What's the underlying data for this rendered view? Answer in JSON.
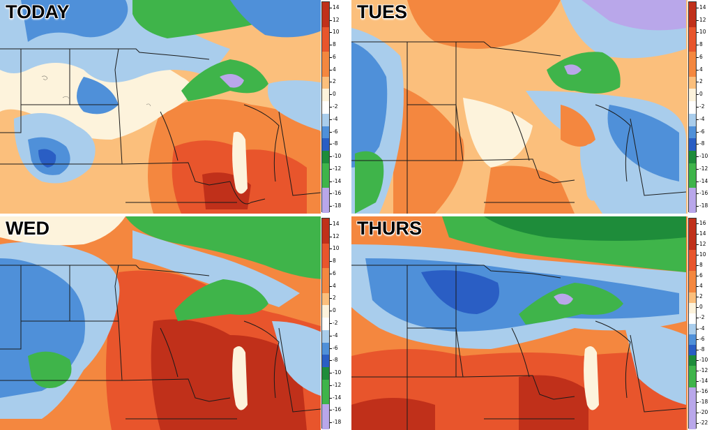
{
  "panels": [
    {
      "id": "tl",
      "title": "TODAY",
      "colorbar_labels": [
        "14",
        "12",
        "10",
        "8",
        "6",
        "4",
        "2",
        "0",
        "-2",
        "-4",
        "-6",
        "-8",
        "-10",
        "-12",
        "-14",
        "-16",
        "-18"
      ]
    },
    {
      "id": "tr",
      "title": "TUES",
      "colorbar_labels": [
        "14",
        "12",
        "10",
        "8",
        "6",
        "4",
        "2",
        "0",
        "-2",
        "-4",
        "-6",
        "-8",
        "-10",
        "-12",
        "-14",
        "-16",
        "-18"
      ]
    },
    {
      "id": "bl",
      "title": "WED",
      "colorbar_labels": [
        "14",
        "12",
        "10",
        "8",
        "6",
        "4",
        "2",
        "0",
        "-2",
        "-4",
        "-6",
        "-8",
        "-10",
        "-12",
        "-14",
        "-16",
        "-18"
      ]
    },
    {
      "id": "br",
      "title": "THURS",
      "colorbar_labels": [
        "16",
        "14",
        "12",
        "10",
        "8",
        "6",
        "4",
        "2",
        "0",
        "-2",
        "-4",
        "-6",
        "-8",
        "-10",
        "-12",
        "-14",
        "-16",
        "-18",
        "-20",
        "-22"
      ]
    }
  ],
  "colors": {
    "warm_dark": "#c0301a",
    "warm": "#e8552c",
    "warm_mid": "#f4873f",
    "warm_light": "#fbbf7c",
    "neutral": "#fdf3dc",
    "white": "#ffffff",
    "cool_light": "#a9cdec",
    "cool": "#4f90d9",
    "cool_dark": "#2a5ec4",
    "green": "#3fb44a",
    "green_dark": "#1e8c3a",
    "lavender": "#b9a7ea"
  }
}
